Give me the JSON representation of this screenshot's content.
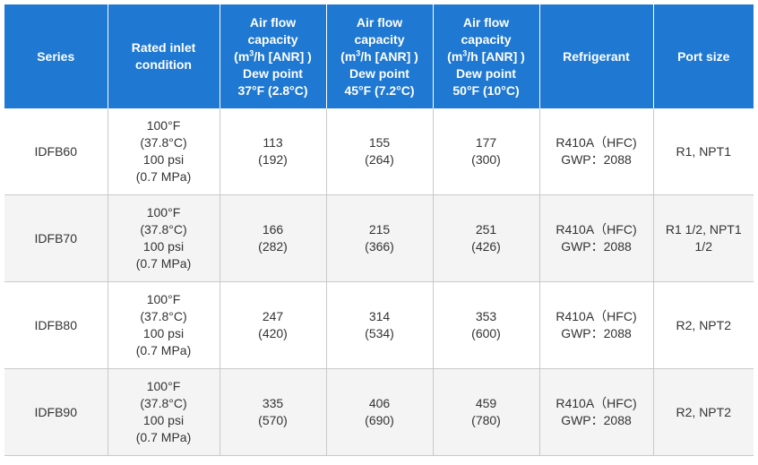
{
  "header": {
    "series": "Series",
    "rated": [
      "Rated inlet",
      "condition"
    ],
    "air37": {
      "l1": "Air flow",
      "l2": "capacity",
      "l3a": "(m",
      "sup": "3",
      "l3b": "/h [ANR] )",
      "l4": "Dew point",
      "l5": "37°F (2.8°C)"
    },
    "air45": {
      "l1": "Air flow",
      "l2": "capacity",
      "l3a": "(m",
      "sup": "3",
      "l3b": "/h [ANR] )",
      "l4": "Dew point",
      "l5": "45°F (7.2°C)"
    },
    "air50": {
      "l1": "Air flow",
      "l2": "capacity",
      "l3a": "(m",
      "sup": "3",
      "l3b": "/h [ANR] )",
      "l4": "Dew point",
      "l5": "50°F (10°C)"
    },
    "refrigerant": "Refrigerant",
    "port": "Port size"
  },
  "rows": [
    {
      "series": "IDFB60",
      "rated": [
        "100°F",
        "(37.8°C)",
        "100 psi",
        "(0.7 MPa)"
      ],
      "cap37": [
        "113",
        "(192)"
      ],
      "cap45": [
        "155",
        "(264)"
      ],
      "cap50": [
        "177",
        "(300)"
      ],
      "refrigerant": [
        "R410A（HFC)",
        "GWP：2088"
      ],
      "port": [
        "R1, NPT1"
      ]
    },
    {
      "series": "IDFB70",
      "rated": [
        "100°F",
        "(37.8°C)",
        "100 psi",
        "(0.7 MPa)"
      ],
      "cap37": [
        "166",
        "(282)"
      ],
      "cap45": [
        "215",
        "(366)"
      ],
      "cap50": [
        "251",
        "(426)"
      ],
      "refrigerant": [
        "R410A（HFC)",
        "GWP：2088"
      ],
      "port": [
        "R1 1/2, NPT1",
        "1/2"
      ]
    },
    {
      "series": "IDFB80",
      "rated": [
        "100°F",
        "(37.8°C)",
        "100 psi",
        "(0.7 MPa)"
      ],
      "cap37": [
        "247",
        "(420)"
      ],
      "cap45": [
        "314",
        "(534)"
      ],
      "cap50": [
        "353",
        "(600)"
      ],
      "refrigerant": [
        "R410A（HFC)",
        "GWP：2088"
      ],
      "port": [
        "R2, NPT2"
      ]
    },
    {
      "series": "IDFB90",
      "rated": [
        "100°F",
        "(37.8°C)",
        "100 psi",
        "(0.7 MPa)"
      ],
      "cap37": [
        "335",
        "(570)"
      ],
      "cap45": [
        "406",
        "(690)"
      ],
      "cap50": [
        "459",
        "(780)"
      ],
      "refrigerant": [
        "R410A（HFC)",
        "GWP：2088"
      ],
      "port": [
        "R2, NPT2"
      ]
    }
  ]
}
